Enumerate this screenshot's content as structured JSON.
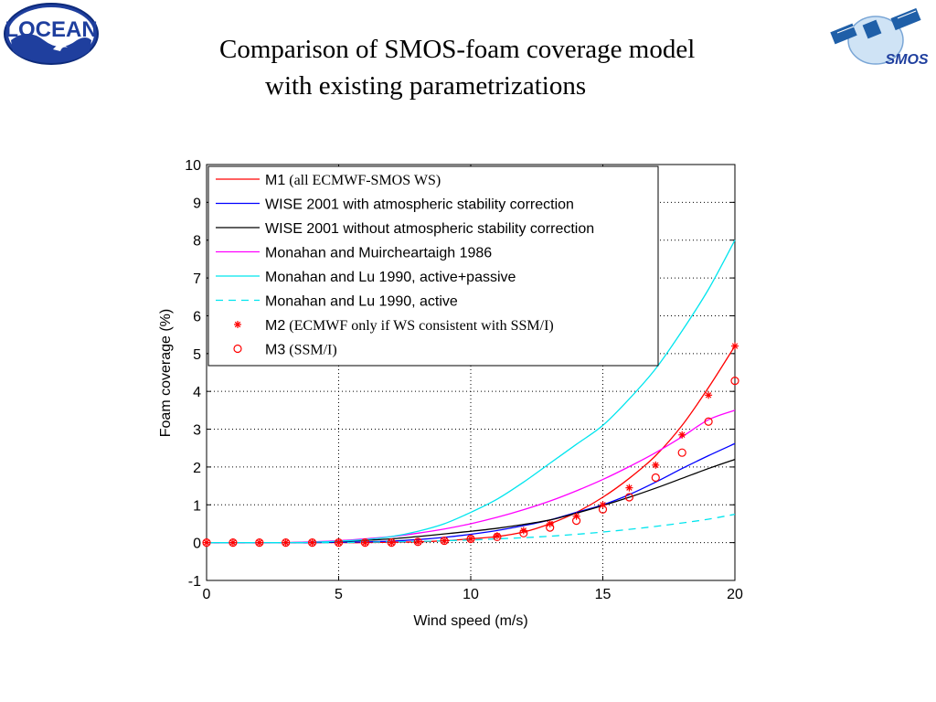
{
  "header": {
    "title_line1": "Comparison of SMOS-foam coverage model",
    "title_line2": "with existing parametrizations",
    "left_logo_text": "LOCEAN",
    "right_logo_text": "SMOS"
  },
  "chart_data": {
    "type": "line",
    "title": "",
    "xlabel": "Wind speed (m/s)",
    "ylabel": "Foam coverage (%)",
    "xlim": [
      0,
      20
    ],
    "ylim": [
      -1,
      10
    ],
    "xticks": [
      0,
      5,
      10,
      15,
      20
    ],
    "yticks": [
      -1,
      0,
      1,
      2,
      3,
      4,
      5,
      6,
      7,
      8,
      9,
      10
    ],
    "grid": true,
    "legend_position": "top-left",
    "x": [
      0,
      1,
      2,
      3,
      4,
      5,
      6,
      7,
      8,
      9,
      10,
      11,
      12,
      13,
      14,
      15,
      16,
      17,
      18,
      19,
      20
    ],
    "series": [
      {
        "name": "M1",
        "name_suffix": " (all ECMWF-SMOS WS)",
        "style": "line",
        "color": "#ff0000",
        "values": [
          0,
          0,
          0,
          0,
          0,
          0,
          0,
          0.01,
          0.02,
          0.05,
          0.1,
          0.16,
          0.28,
          0.5,
          0.8,
          1.2,
          1.7,
          2.3,
          3.1,
          4.1,
          5.2
        ]
      },
      {
        "name": "WISE 2001 with atmospheric stability correction",
        "style": "line",
        "color": "#0000ff",
        "values": [
          0,
          0,
          0,
          0,
          0,
          0.01,
          0.02,
          0.04,
          0.08,
          0.14,
          0.22,
          0.32,
          0.45,
          0.6,
          0.8,
          1.0,
          1.27,
          1.6,
          1.96,
          2.3,
          2.62
        ]
      },
      {
        "name": "WISE 2001 without atmospheric stability correction",
        "style": "line",
        "color": "#000000",
        "values": [
          0,
          0,
          0,
          0,
          0.01,
          0.03,
          0.06,
          0.1,
          0.16,
          0.23,
          0.3,
          0.38,
          0.48,
          0.6,
          0.78,
          0.98,
          1.2,
          1.44,
          1.7,
          1.96,
          2.2
        ]
      },
      {
        "name": "Monahan and Muircheartaigh 1986",
        "style": "line",
        "color": "#ff00ff",
        "values": [
          0,
          0,
          0,
          0,
          0.02,
          0.05,
          0.1,
          0.16,
          0.25,
          0.36,
          0.5,
          0.67,
          0.87,
          1.1,
          1.37,
          1.67,
          2.01,
          2.38,
          2.8,
          3.25,
          3.5
        ]
      },
      {
        "name": "Monahan and Lu 1990, active+passive",
        "style": "line",
        "color": "#00e5ee",
        "values": [
          0,
          0,
          0,
          0,
          0.01,
          0.04,
          0.08,
          0.16,
          0.3,
          0.5,
          0.8,
          1.15,
          1.6,
          2.1,
          2.6,
          3.1,
          3.8,
          4.6,
          5.6,
          6.7,
          8.0
        ]
      },
      {
        "name": "Monahan and Lu 1990, active",
        "style": "dashed",
        "color": "#00e5ee",
        "values": [
          0,
          0,
          0,
          0,
          0,
          0,
          0.01,
          0.02,
          0.03,
          0.05,
          0.07,
          0.1,
          0.13,
          0.17,
          0.22,
          0.28,
          0.35,
          0.43,
          0.52,
          0.62,
          0.75
        ]
      },
      {
        "name": "M2",
        "name_suffix": " (ECMWF only if WS consistent with SSM/I)",
        "style": "star",
        "color": "#ff0000",
        "values": [
          0,
          0,
          0,
          0,
          0,
          0,
          0,
          0,
          0.02,
          0.05,
          0.1,
          0.18,
          0.32,
          0.5,
          0.7,
          1.0,
          1.45,
          2.05,
          2.85,
          3.9,
          5.2
        ]
      },
      {
        "name": "M3",
        "name_suffix": " (SSM/I)",
        "style": "circle",
        "color": "#ff0000",
        "values": [
          0,
          0,
          0,
          0,
          0,
          0,
          0,
          0,
          0.02,
          0.05,
          0.1,
          0.15,
          0.25,
          0.4,
          0.58,
          0.88,
          1.2,
          1.72,
          2.38,
          3.2,
          4.28
        ]
      }
    ]
  }
}
